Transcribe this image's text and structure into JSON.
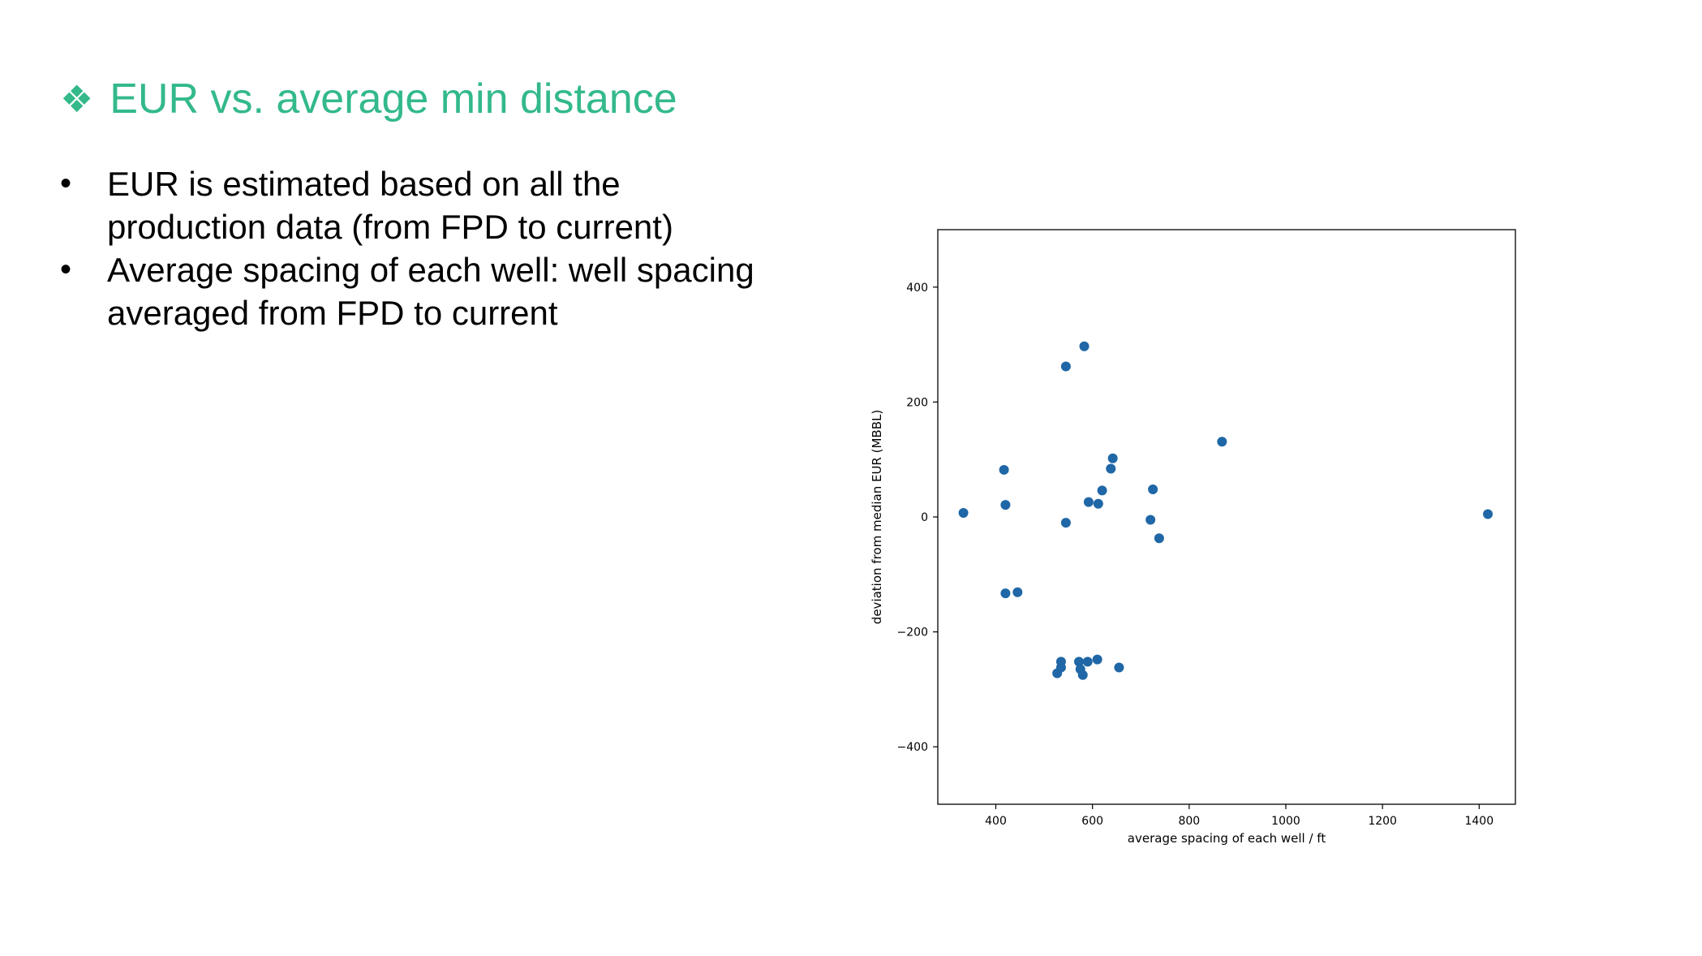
{
  "slide": {
    "title_icon": "four-diamonds-icon",
    "title_glyph": "❖",
    "title": "EUR vs. average min distance",
    "accent_color": "#33b98a",
    "bullets": [
      "EUR is estimated based on all the production data (from FPD to current)",
      "Average spacing of each well: well spacing averaged from FPD to current"
    ]
  },
  "chart_data": {
    "type": "scatter",
    "xlabel": "average spacing of each well / ft",
    "ylabel": "deviation from median EUR (MBBL)",
    "xlim": [
      280,
      1475
    ],
    "ylim": [
      -500,
      500
    ],
    "xticks": [
      400,
      600,
      800,
      1000,
      1200,
      1400
    ],
    "yticks": [
      400,
      200,
      0,
      -200,
      -400
    ],
    "xtick_labels": [
      "400",
      "600",
      "800",
      "1000",
      "1200",
      "1400"
    ],
    "ytick_labels": [
      "400",
      "200",
      "0",
      "−200",
      "−400"
    ],
    "marker_color": "#1f67a6",
    "series": [
      {
        "x": [
          333,
          417,
          420,
          420,
          445,
          527,
          535,
          535,
          545,
          545,
          572,
          575,
          580,
          583,
          590,
          592,
          610,
          612,
          620,
          638,
          642,
          655,
          720,
          725,
          738,
          868,
          1418
        ],
        "y": [
          7,
          82,
          21,
          -133,
          -131,
          -272,
          -252,
          -262,
          262,
          -10,
          -252,
          -265,
          -275,
          297,
          -252,
          26,
          -248,
          23,
          46,
          84,
          102,
          -262,
          -5,
          48,
          -37,
          131,
          5
        ]
      }
    ]
  }
}
